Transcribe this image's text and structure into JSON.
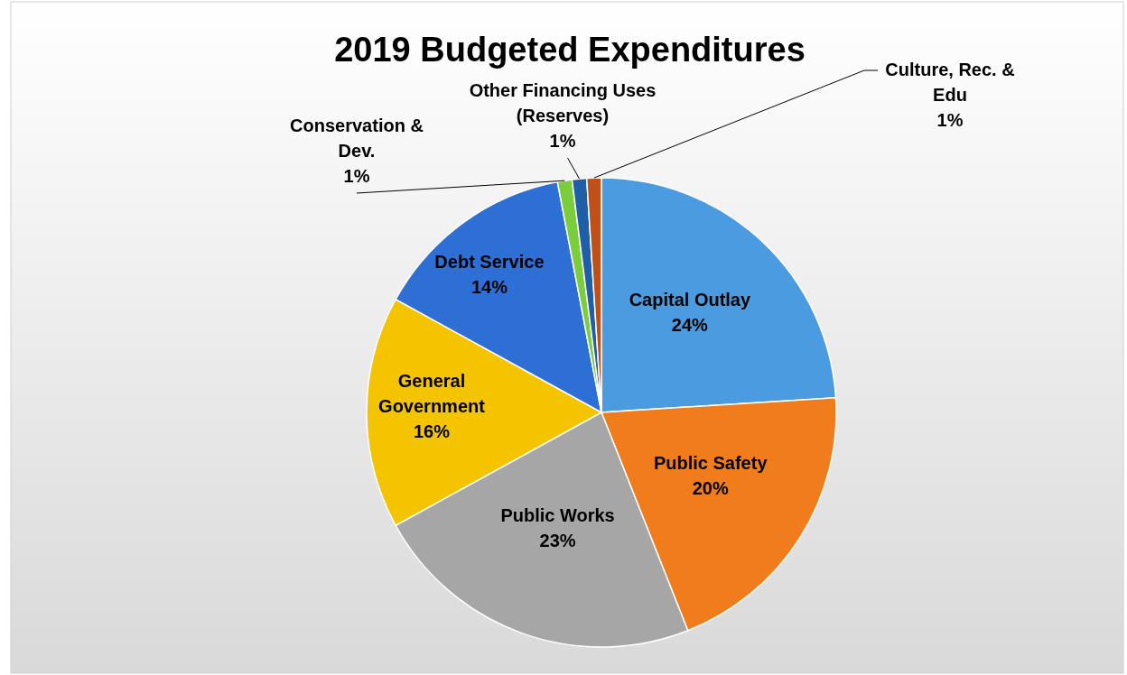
{
  "chart_data": {
    "type": "pie",
    "title": "2019 Budgeted Expenditures",
    "categories": [
      "Capital Outlay",
      "Public Safety",
      "Public Works",
      "General Government",
      "Debt Service",
      "Conservation & Dev.",
      "Other Financing Uses (Reserves)",
      "Culture, Rec. & Edu"
    ],
    "values": [
      24,
      20,
      23,
      16,
      14,
      1,
      1,
      1
    ],
    "value_labels": [
      "24%",
      "20%",
      "23%",
      "16%",
      "14%",
      "1%",
      "1%",
      "1%"
    ],
    "colors": [
      "#4a9be0",
      "#f07c1c",
      "#a6a6a6",
      "#f5c400",
      "#2e6fd6",
      "#7ccd3c",
      "#1f5fa8",
      "#c0501a"
    ]
  }
}
